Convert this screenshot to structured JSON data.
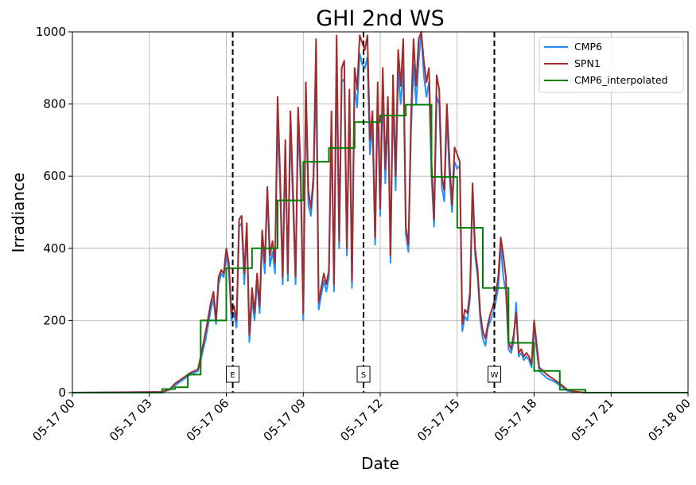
{
  "chart_data": {
    "type": "line",
    "title": "GHI 2nd WS",
    "xlabel": "Date",
    "ylabel": "Irradiance",
    "x_unit": "hours since 05-17 00:00",
    "xlim": [
      0,
      24
    ],
    "ylim": [
      0,
      1000
    ],
    "xticks": [
      {
        "value": 0,
        "label": "05-17 00"
      },
      {
        "value": 3,
        "label": "05-17 03"
      },
      {
        "value": 6,
        "label": "05-17 06"
      },
      {
        "value": 9,
        "label": "05-17 09"
      },
      {
        "value": 12,
        "label": "05-17 12"
      },
      {
        "value": 15,
        "label": "05-17 15"
      },
      {
        "value": 18,
        "label": "05-17 18"
      },
      {
        "value": 21,
        "label": "05-17 21"
      },
      {
        "value": 24,
        "label": "05-18 00"
      }
    ],
    "yticks": [
      0,
      200,
      400,
      600,
      800,
      1000
    ],
    "grid": true,
    "legend_position": "top-right",
    "colors": {
      "CMP6": "#1e90ff",
      "SPN1": "#a52a2a",
      "CMP6_interpolated": "#008000",
      "markers": "#000000"
    },
    "vlines": [
      {
        "x": 6.25,
        "label": "E"
      },
      {
        "x": 11.35,
        "label": "S"
      },
      {
        "x": 16.45,
        "label": "W"
      }
    ],
    "x": [
      0,
      3.5,
      3.8,
      4.0,
      4.3,
      4.6,
      4.9,
      5.0,
      5.2,
      5.4,
      5.5,
      5.6,
      5.7,
      5.8,
      5.9,
      6.0,
      6.1,
      6.2,
      6.3,
      6.4,
      6.5,
      6.6,
      6.7,
      6.8,
      6.9,
      7.0,
      7.1,
      7.2,
      7.3,
      7.4,
      7.5,
      7.6,
      7.7,
      7.8,
      7.9,
      8.0,
      8.1,
      8.2,
      8.3,
      8.4,
      8.5,
      8.6,
      8.7,
      8.8,
      8.9,
      9.0,
      9.1,
      9.2,
      9.3,
      9.4,
      9.5,
      9.6,
      9.7,
      9.8,
      9.9,
      10.0,
      10.1,
      10.2,
      10.3,
      10.4,
      10.5,
      10.6,
      10.7,
      10.8,
      10.9,
      11.0,
      11.1,
      11.2,
      11.3,
      11.4,
      11.5,
      11.6,
      11.7,
      11.8,
      11.9,
      12.0,
      12.1,
      12.2,
      12.3,
      12.4,
      12.5,
      12.6,
      12.7,
      12.8,
      12.9,
      13.0,
      13.1,
      13.2,
      13.3,
      13.4,
      13.5,
      13.6,
      13.7,
      13.8,
      13.9,
      14.0,
      14.1,
      14.2,
      14.3,
      14.4,
      14.5,
      14.6,
      14.7,
      14.8,
      14.9,
      15.0,
      15.1,
      15.2,
      15.3,
      15.4,
      15.5,
      15.6,
      15.7,
      15.8,
      15.9,
      16.0,
      16.1,
      16.2,
      16.3,
      16.4,
      16.5,
      16.6,
      16.7,
      16.8,
      16.9,
      17.0,
      17.1,
      17.2,
      17.3,
      17.4,
      17.5,
      17.6,
      17.7,
      17.8,
      17.9,
      18.0,
      18.2,
      18.5,
      18.8,
      19.0,
      19.3,
      19.6,
      20.0,
      24
    ],
    "series": [
      {
        "name": "CMP6",
        "values": [
          0,
          2,
          8,
          20,
          35,
          50,
          60,
          90,
          150,
          230,
          260,
          190,
          300,
          330,
          320,
          380,
          340,
          200,
          220,
          180,
          460,
          470,
          300,
          450,
          140,
          260,
          200,
          310,
          220,
          420,
          330,
          560,
          350,
          390,
          330,
          760,
          560,
          300,
          660,
          310,
          740,
          520,
          300,
          740,
          580,
          200,
          820,
          520,
          490,
          580,
          880,
          230,
          270,
          310,
          280,
          320,
          740,
          280,
          920,
          400,
          860,
          870,
          380,
          790,
          290,
          850,
          790,
          940,
          910,
          900,
          930,
          660,
          740,
          410,
          810,
          490,
          850,
          580,
          780,
          360,
          820,
          560,
          890,
          800,
          900,
          440,
          390,
          720,
          910,
          800,
          920,
          1000,
          880,
          820,
          860,
          600,
          460,
          820,
          800,
          570,
          530,
          770,
          600,
          500,
          640,
          620,
          630,
          170,
          210,
          200,
          260,
          560,
          380,
          320,
          200,
          150,
          130,
          180,
          200,
          220,
          250,
          290,
          410,
          320,
          280,
          120,
          110,
          140,
          250,
          100,
          110,
          90,
          100,
          90,
          70,
          180,
          60,
          40,
          30,
          20,
          5,
          2,
          0,
          0
        ]
      },
      {
        "name": "SPN1",
        "values": [
          0,
          2,
          10,
          25,
          40,
          55,
          65,
          100,
          170,
          250,
          280,
          200,
          320,
          340,
          330,
          400,
          360,
          220,
          240,
          200,
          480,
          490,
          330,
          470,
          160,
          290,
          220,
          330,
          240,
          450,
          360,
          570,
          380,
          420,
          360,
          820,
          600,
          320,
          700,
          330,
          780,
          560,
          320,
          790,
          620,
          220,
          860,
          560,
          510,
          600,
          980,
          250,
          290,
          330,
          300,
          340,
          780,
          300,
          990,
          420,
          900,
          920,
          400,
          840,
          310,
          900,
          840,
          990,
          970,
          950,
          990,
          700,
          780,
          430,
          860,
          510,
          900,
          620,
          820,
          380,
          880,
          600,
          950,
          850,
          980,
          460,
          410,
          760,
          980,
          850,
          980,
          1000,
          920,
          860,
          900,
          640,
          480,
          880,
          840,
          600,
          560,
          800,
          640,
          520,
          680,
          660,
          640,
          190,
          230,
          220,
          280,
          580,
          400,
          340,
          220,
          170,
          150,
          190,
          220,
          240,
          270,
          320,
          430,
          380,
          320,
          140,
          120,
          160,
          220,
          110,
          120,
          100,
          110,
          100,
          80,
          200,
          70,
          50,
          35,
          25,
          8,
          3,
          0,
          0
        ]
      },
      {
        "name": "CMP6_interpolated",
        "step_x": [
          0,
          3.0,
          3.5,
          4.0,
          4.5,
          5.0,
          6.0,
          6.25,
          7.0,
          8.0,
          9.0,
          10.0,
          11.0,
          11.35,
          12.0,
          13.0,
          14.0,
          15.0,
          16.0,
          16.45,
          17.0,
          17.5,
          18.0,
          18.5,
          19.0,
          20.0,
          24
        ],
        "step_y": [
          0,
          0,
          10,
          15,
          50,
          200,
          345,
          345,
          400,
          533,
          640,
          678,
          750,
          750,
          768,
          798,
          598,
          457,
          290,
          290,
          138,
          138,
          60,
          60,
          8,
          0,
          0
        ]
      }
    ]
  }
}
